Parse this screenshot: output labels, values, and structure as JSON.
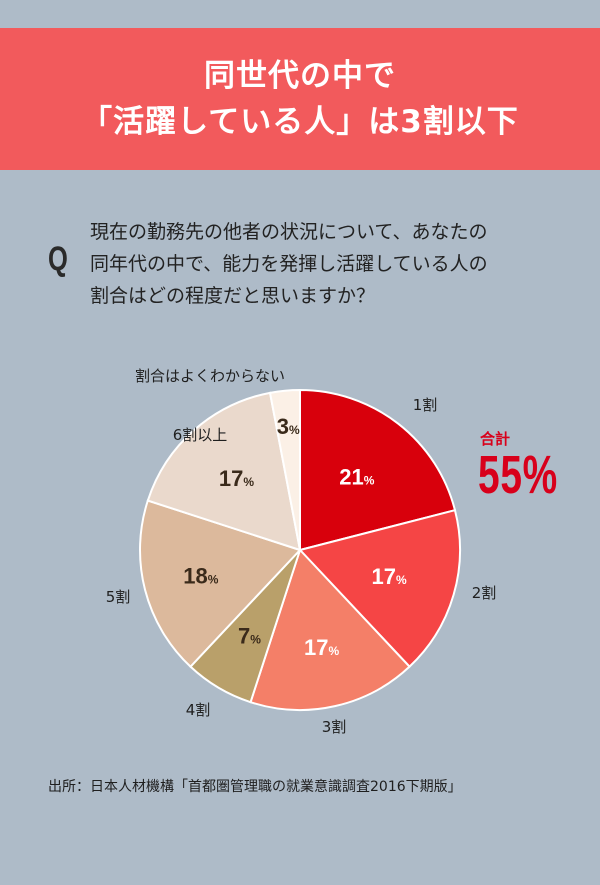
{
  "header": {
    "line1": "同世代の中で",
    "line2": "「活躍している人」は3割以下"
  },
  "question": {
    "mark": "Q",
    "lines": [
      "現在の勤務先の他者の状況について、あなたの",
      "同年代の中で、能力を発揮し活躍している人の",
      "割合はどの程度だと思いますか？"
    ]
  },
  "total": {
    "label": "合計",
    "value": "55%"
  },
  "source": "出所：日本人材機構「首都圏管理職の就業意識調査2016下期版」",
  "colors": {
    "background": "#aebbc8",
    "banner": "#f25a5c",
    "accent": "#d8001b"
  },
  "chart_data": {
    "type": "pie",
    "unit": "%",
    "slices": [
      {
        "label": "1割",
        "value": 21,
        "color": "#d8000c"
      },
      {
        "label": "2割",
        "value": 17,
        "color": "#f54545"
      },
      {
        "label": "3割",
        "value": 17,
        "color": "#f47f68"
      },
      {
        "label": "4割",
        "value": 7,
        "color": "#b9a06a"
      },
      {
        "label": "5割",
        "value": 18,
        "color": "#dcb99c"
      },
      {
        "label": "6割以上",
        "value": 17,
        "color": "#ead9cc"
      },
      {
        "label": "割合はよくわからない",
        "value": 3,
        "color": "#fbf0e6"
      }
    ]
  }
}
